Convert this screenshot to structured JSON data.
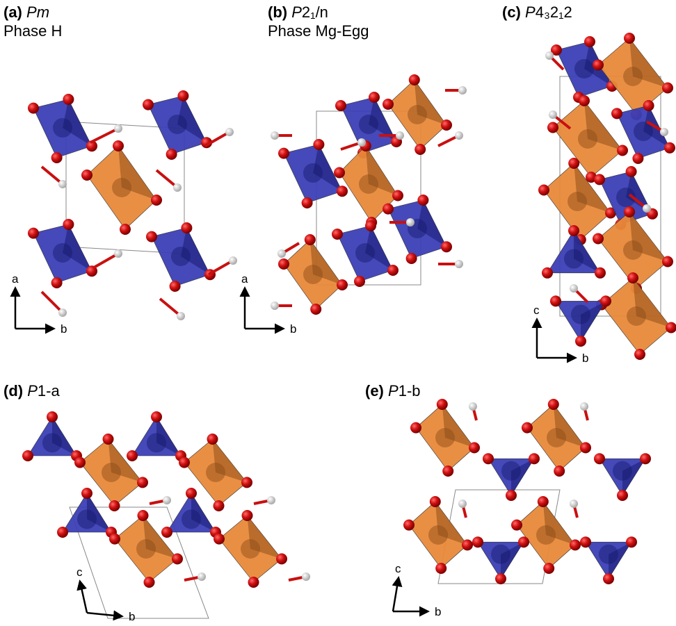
{
  "panels": [
    {
      "letter": "(a)",
      "space_group": {
        "symbol": "Pm"
      },
      "phase": "Phase H",
      "axes": {
        "vertical": "a",
        "horizontal": "b"
      }
    },
    {
      "letter": "(b)",
      "space_group": {
        "symbol": "P",
        "rest": "2₁/n"
      },
      "phase": "Phase Mg-Egg",
      "axes": {
        "vertical": "a",
        "horizontal": "b"
      }
    },
    {
      "letter": "(c)",
      "space_group": {
        "symbol": "P",
        "rest": "4₃2₁2"
      },
      "axes": {
        "vertical": "c",
        "horizontal": "b"
      }
    },
    {
      "letter": "(d)",
      "space_group": {
        "symbol": "P",
        "rest": "1-a"
      },
      "axes": {
        "vertical": "c",
        "horizontal": "b"
      }
    },
    {
      "letter": "(e)",
      "space_group": {
        "symbol": "P",
        "rest": "1-b"
      },
      "axes": {
        "vertical": "c",
        "horizontal": "b"
      }
    }
  ]
}
